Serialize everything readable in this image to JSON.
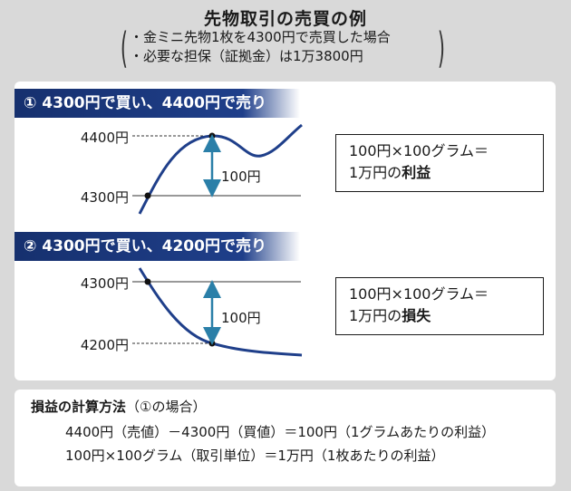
{
  "title": "先物取引の売買の例",
  "conditions": [
    "・金ミニ先物1枚を4300円で売買した場合",
    "・必要な担保（証拠金）は1万3800円"
  ],
  "example1": {
    "banner": "① 4300円で買い、4400円で売り",
    "high_label": "4400円",
    "low_label": "4300円",
    "diff_label": "100円",
    "result_line1": "100円×100グラム＝",
    "result_line2_prefix": "1万円の",
    "result_line2_bold": "利益"
  },
  "example2": {
    "banner": "② 4300円で買い、4200円で売り",
    "high_label": "4300円",
    "low_label": "4200円",
    "diff_label": "100円",
    "result_line1": "100円×100グラム＝",
    "result_line2_prefix": "1万円の",
    "result_line2_bold": "損失"
  },
  "calc": {
    "title_bold": "損益の計算方法",
    "title_rest": "（①の場合）",
    "line1": "4400円（売値）－4300円（買値）＝100円（1グラムあたりの利益）",
    "line2": "100円×100グラム（取引単位）＝1万円（1枚あたりの利益）"
  },
  "colors": {
    "banner": "#1f3f8a",
    "curve": "#1f3f8a",
    "arrow": "#2a7fa8",
    "background": "#d9d9d9"
  }
}
